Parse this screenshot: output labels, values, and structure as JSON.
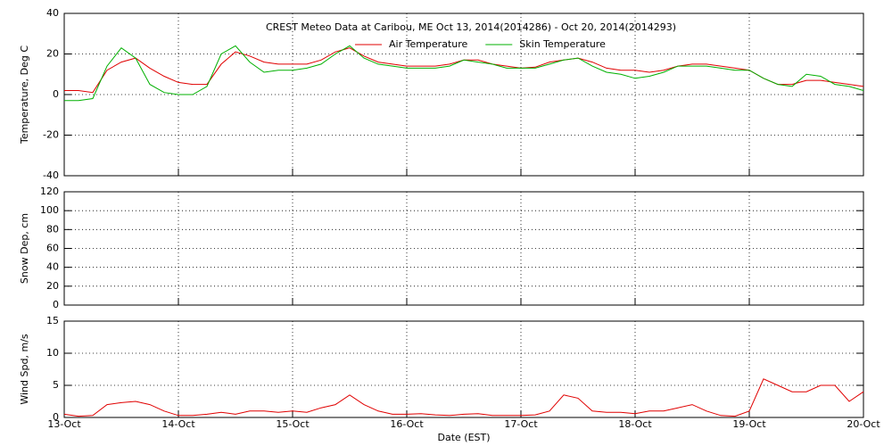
{
  "chart_data": [
    {
      "type": "line",
      "title": "CREST Meteo Data at Caribou, ME   Oct 13, 2014(2014286) - Oct 20, 2014(2014293)",
      "ylabel": "Temperature, Deg C",
      "xlim": [
        13,
        20
      ],
      "xticks": [
        13,
        14,
        15,
        16,
        17,
        18,
        19,
        20
      ],
      "ylim": [
        -40,
        40
      ],
      "yticks": [
        -40,
        -20,
        0,
        20,
        40
      ],
      "grid": true,
      "legend": "top",
      "x": [
        13,
        13.125,
        13.25,
        13.375,
        13.5,
        13.625,
        13.75,
        13.875,
        14,
        14.125,
        14.25,
        14.375,
        14.5,
        14.625,
        14.75,
        14.875,
        15,
        15.125,
        15.25,
        15.375,
        15.5,
        15.625,
        15.75,
        15.875,
        16,
        16.125,
        16.25,
        16.375,
        16.5,
        16.625,
        16.75,
        16.875,
        17,
        17.125,
        17.25,
        17.375,
        17.5,
        17.625,
        17.75,
        17.875,
        18,
        18.125,
        18.25,
        18.375,
        18.5,
        18.625,
        18.75,
        18.875,
        19,
        19.125,
        19.25,
        19.375,
        19.5,
        19.625,
        19.75,
        19.875,
        20
      ],
      "series": [
        {
          "name": "Air Temperature",
          "color": "#e00000",
          "values": [
            2,
            2,
            1,
            12,
            16,
            18,
            13,
            9,
            6,
            5,
            5,
            15,
            21,
            19,
            16,
            15,
            15,
            15,
            17,
            21,
            23,
            19,
            16,
            15,
            14,
            14,
            14,
            15,
            17,
            17,
            15,
            14,
            13,
            13.5,
            16,
            17,
            18,
            16,
            13,
            12,
            12,
            11,
            12,
            14,
            15,
            15,
            14,
            13,
            12,
            8,
            5,
            5,
            7,
            7,
            6,
            5,
            4
          ]
        },
        {
          "name": "Skin Temperature",
          "color": "#00b000",
          "values": [
            -3,
            -3,
            -2,
            14,
            23,
            18,
            5,
            1,
            0,
            0,
            4,
            20,
            24,
            16,
            11,
            12,
            12,
            13,
            15,
            20,
            24,
            18,
            15,
            14,
            13,
            13,
            13,
            14,
            17,
            16,
            15,
            13,
            13,
            13,
            15,
            17,
            18,
            14,
            11,
            10,
            8,
            9,
            11,
            14,
            14,
            14,
            13,
            12,
            12,
            8,
            5,
            4,
            10,
            9,
            5,
            4,
            2
          ]
        }
      ]
    },
    {
      "type": "line",
      "ylabel": "Snow Dep, cm",
      "xlim": [
        13,
        20
      ],
      "xticks": [
        13,
        14,
        15,
        16,
        17,
        18,
        19,
        20
      ],
      "ylim": [
        0,
        120
      ],
      "yticks": [
        0,
        20,
        40,
        60,
        80,
        100,
        120
      ],
      "grid": true,
      "series": []
    },
    {
      "type": "line",
      "ylabel": "Wind Spd, m/s",
      "xlabel": "Date (EST)",
      "xlim": [
        13,
        20
      ],
      "xticks": [
        {
          "value": 13,
          "label": "13-Oct"
        },
        {
          "value": 14,
          "label": "14-Oct"
        },
        {
          "value": 15,
          "label": "15-Oct"
        },
        {
          "value": 16,
          "label": "16-Oct"
        },
        {
          "value": 17,
          "label": "17-Oct"
        },
        {
          "value": 18,
          "label": "18-Oct"
        },
        {
          "value": 19,
          "label": "19-Oct"
        },
        {
          "value": 20,
          "label": "20-Oct"
        }
      ],
      "ylim": [
        0,
        15
      ],
      "yticks": [
        0,
        5,
        10,
        15
      ],
      "grid": true,
      "x": [
        13,
        13.125,
        13.25,
        13.375,
        13.5,
        13.625,
        13.75,
        13.875,
        14,
        14.125,
        14.25,
        14.375,
        14.5,
        14.625,
        14.75,
        14.875,
        15,
        15.125,
        15.25,
        15.375,
        15.5,
        15.625,
        15.75,
        15.875,
        16,
        16.125,
        16.25,
        16.375,
        16.5,
        16.625,
        16.75,
        16.875,
        17,
        17.125,
        17.25,
        17.375,
        17.5,
        17.625,
        17.75,
        17.875,
        18,
        18.125,
        18.25,
        18.375,
        18.5,
        18.625,
        18.75,
        18.875,
        19,
        19.125,
        19.25,
        19.375,
        19.5,
        19.625,
        19.75,
        19.875,
        20
      ],
      "series": [
        {
          "name": "Wind Speed",
          "color": "#e00000",
          "values": [
            0.5,
            0.2,
            0.3,
            2,
            2.3,
            2.5,
            2,
            1,
            0.3,
            0.3,
            0.5,
            0.8,
            0.5,
            1,
            1,
            0.8,
            1,
            0.8,
            1.5,
            2,
            3.5,
            2,
            1,
            0.5,
            0.5,
            0.6,
            0.4,
            0.3,
            0.5,
            0.6,
            0.3,
            0.3,
            0.3,
            0.4,
            1,
            3.5,
            3,
            1,
            0.8,
            0.8,
            0.6,
            1,
            1,
            1.5,
            2,
            1,
            0.3,
            0.2,
            1,
            6,
            5,
            4,
            4,
            5,
            5,
            2.5,
            4
          ]
        }
      ]
    }
  ]
}
